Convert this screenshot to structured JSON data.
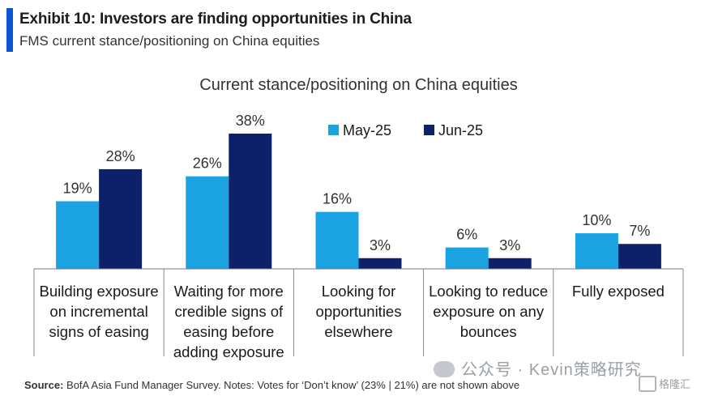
{
  "exhibit": {
    "title": "Exhibit 10: Investors are finding opportunities in China",
    "subtitle": "FMS current stance/positioning on China equities"
  },
  "chart_data": {
    "type": "bar",
    "title": "Current stance/positioning on China equities",
    "categories": [
      [
        "Building exposure",
        "on incremental",
        "signs of easing"
      ],
      [
        "Waiting for more",
        "credible signs of",
        "easing before",
        "adding exposure"
      ],
      [
        "Looking for",
        "opportunities",
        "elsewhere"
      ],
      [
        "Looking to reduce",
        "exposure on any",
        "bounces"
      ],
      [
        "Fully exposed"
      ]
    ],
    "series": [
      {
        "name": "May-25",
        "values": [
          19,
          26,
          16,
          6,
          10
        ],
        "color": "#1aa3e0"
      },
      {
        "name": "Jun-25",
        "values": [
          28,
          38,
          3,
          3,
          7
        ],
        "color": "#0c2169"
      }
    ],
    "value_suffix": "%",
    "legend_position": "top-right",
    "ylim": [
      0,
      38
    ]
  },
  "source": {
    "label": "Source:",
    "text": "BofA Asia Fund Manager Survey. Notes: Votes for ‘Don’t know’ (23% | 21%) are not shown above"
  },
  "watermark": {
    "text": "公众号 · Kevin策略研究"
  },
  "corner_logo": {
    "text": "格隆汇"
  }
}
